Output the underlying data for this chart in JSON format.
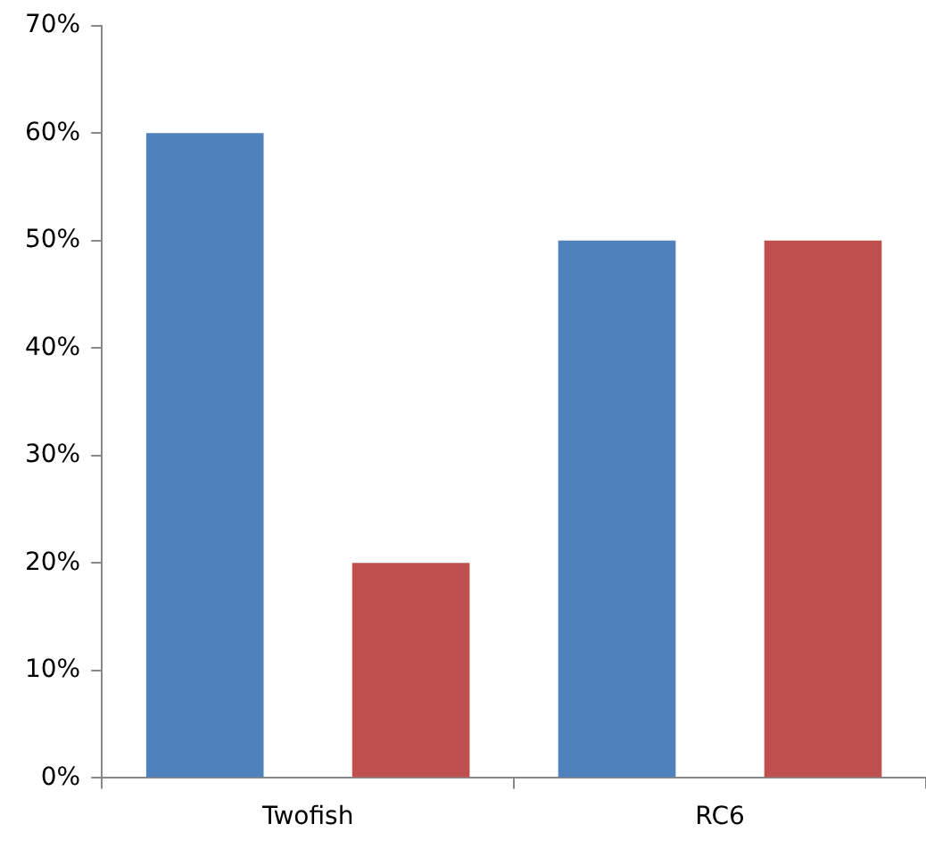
{
  "chart_data": {
    "type": "bar",
    "categories": [
      "Twofish",
      "RC6"
    ],
    "series": [
      {
        "color": "#4f81bd",
        "values": [
          60,
          50
        ]
      },
      {
        "color": "#c0504d",
        "values": [
          20,
          50
        ]
      }
    ],
    "ylim": [
      0,
      70
    ],
    "yticks": [
      {
        "value": 0,
        "label": "0%"
      },
      {
        "value": 10,
        "label": "10%"
      },
      {
        "value": 20,
        "label": "20%"
      },
      {
        "value": 30,
        "label": "30%"
      },
      {
        "value": 40,
        "label": "40%"
      },
      {
        "value": 50,
        "label": "50%"
      },
      {
        "value": 60,
        "label": "60%"
      },
      {
        "value": 70,
        "label": "70%"
      }
    ],
    "grid": false,
    "legend": false
  }
}
